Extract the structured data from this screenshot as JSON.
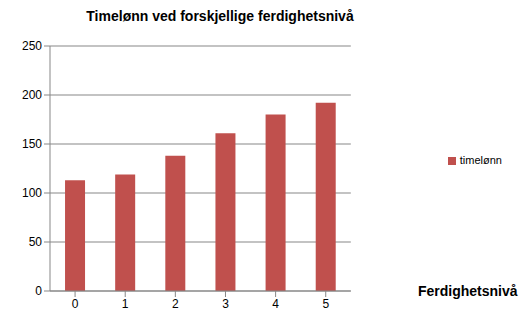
{
  "chart_data": {
    "type": "bar",
    "title": "Timelønn ved forskjellige ferdighetsnivå",
    "x_label": "Ferdighetsnivå",
    "categories": [
      "0",
      "1",
      "2",
      "3",
      "4",
      "5"
    ],
    "series": [
      {
        "name": "timelønn",
        "color": "#c0504d",
        "values": [
          113,
          119,
          138,
          161,
          180,
          192
        ]
      }
    ],
    "ylim": [
      0,
      250
    ],
    "yticks": [
      0,
      50,
      100,
      150,
      200,
      250
    ],
    "grid": true,
    "legend": "right"
  }
}
